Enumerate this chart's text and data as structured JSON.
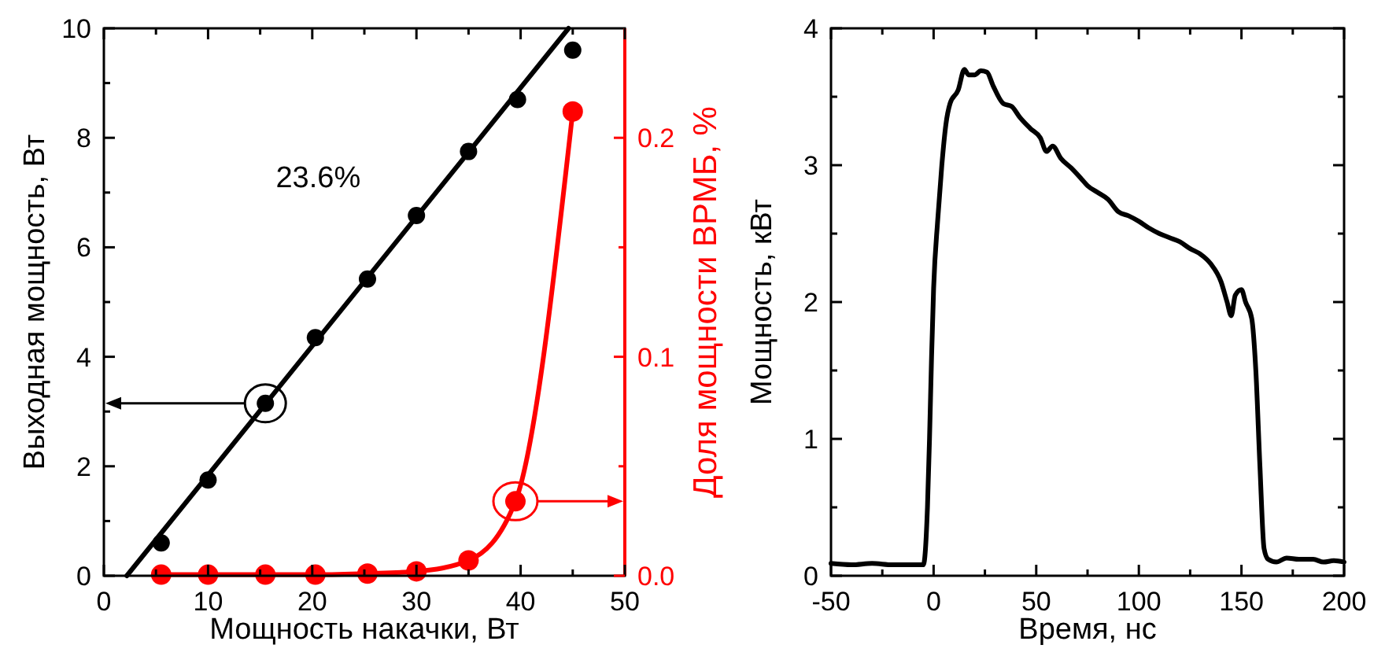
{
  "chart_data": [
    {
      "type": "scatter",
      "xlabel": "Мощность накачки, Вт",
      "ylabel": "Выходная мощность, Вт",
      "y2label": "Доля мощности ВРМБ, %",
      "annotations": [
        "23.6%"
      ],
      "xlim": [
        0,
        50
      ],
      "xticks": [
        0,
        {
          "value": 5,
          "label": null
        },
        10,
        {
          "value": 15,
          "label": null
        },
        20,
        {
          "value": 25,
          "label": null
        },
        30,
        {
          "value": 35,
          "label": null
        },
        40,
        {
          "value": 45,
          "label": null
        },
        50
      ],
      "ylim": [
        0,
        10
      ],
      "yticks": [
        0,
        {
          "value": 1,
          "label": null
        },
        2,
        {
          "value": 3,
          "label": null
        },
        4,
        {
          "value": 5,
          "label": null
        },
        6,
        {
          "value": 7,
          "label": null
        },
        8,
        {
          "value": 9,
          "label": null
        },
        10
      ],
      "y2lim": [
        0,
        0.25
      ],
      "y2ticks": [
        {
          "value": 0,
          "label": "0.0"
        },
        {
          "value": 0.05,
          "label": null
        },
        0.1,
        {
          "value": 0.15,
          "label": null
        },
        0.2
      ],
      "series": [
        {
          "color": "#000000",
          "marker": "circle",
          "x": [
            5.5,
            10,
            15.5,
            20.3,
            25.3,
            30,
            35,
            39.7,
            45
          ],
          "values": [
            0.6,
            1.75,
            3.15,
            4.35,
            5.42,
            6.58,
            7.75,
            8.7,
            9.6
          ]
        },
        {
          "type": "line",
          "color": "#000000",
          "x": [
            2.2,
            44.6
          ],
          "values": [
            0,
            10
          ]
        },
        {
          "type": "line",
          "color": "#ff0000",
          "marker": "circle",
          "axis": "y2",
          "x": [
            5.5,
            10,
            15.5,
            20.3,
            25.3,
            30,
            35,
            39.5,
            45
          ],
          "values": [
            0.0005,
            0.0005,
            0.0005,
            0.0005,
            0.001,
            0.002,
            0.007,
            0.034,
            0.212
          ]
        }
      ]
    },
    {
      "type": "line",
      "xlabel": "Время, нс",
      "ylabel": "Мощность, кВт",
      "xlim": [
        -50,
        200
      ],
      "xticks": [
        -50,
        {
          "value": -25,
          "label": null
        },
        0,
        {
          "value": 25,
          "label": null
        },
        50,
        {
          "value": 75,
          "label": null
        },
        100,
        {
          "value": 125,
          "label": null
        },
        150,
        {
          "value": 175,
          "label": null
        },
        200
      ],
      "ylim": [
        0,
        4
      ],
      "yticks": [
        0,
        {
          "value": 0.5,
          "label": null
        },
        1,
        {
          "value": 1.5,
          "label": null
        },
        2,
        {
          "value": 2.5,
          "label": null
        },
        3,
        {
          "value": 3.5,
          "label": null
        },
        4
      ],
      "series": [
        {
          "color": "#000000",
          "x": [
            -50,
            -40,
            -30,
            -20,
            -10,
            -5,
            -3,
            -2,
            -1,
            0,
            2,
            4,
            6,
            8,
            12,
            15,
            17,
            20,
            23,
            26,
            29,
            34,
            38,
            42,
            47,
            52,
            55,
            58,
            62,
            67,
            72,
            75,
            80,
            85,
            90,
            95,
            100,
            105,
            110,
            115,
            120,
            125,
            130,
            135,
            140,
            143,
            145,
            147,
            150,
            152,
            155,
            157,
            159,
            161,
            163,
            167,
            172,
            178,
            185,
            190,
            195,
            200
          ],
          "values": [
            0.09,
            0.08,
            0.09,
            0.08,
            0.08,
            0.08,
            0.5,
            1.0,
            1.6,
            2.1,
            2.6,
            3.0,
            3.3,
            3.45,
            3.55,
            3.7,
            3.66,
            3.66,
            3.69,
            3.68,
            3.58,
            3.45,
            3.43,
            3.35,
            3.27,
            3.2,
            3.1,
            3.14,
            3.05,
            2.98,
            2.9,
            2.85,
            2.8,
            2.75,
            2.66,
            2.63,
            2.59,
            2.54,
            2.5,
            2.47,
            2.44,
            2.39,
            2.35,
            2.28,
            2.15,
            2.0,
            1.9,
            2.05,
            2.09,
            2.0,
            1.88,
            1.5,
            0.8,
            0.2,
            0.12,
            0.1,
            0.13,
            0.12,
            0.12,
            0.1,
            0.11,
            0.1
          ]
        }
      ]
    }
  ]
}
